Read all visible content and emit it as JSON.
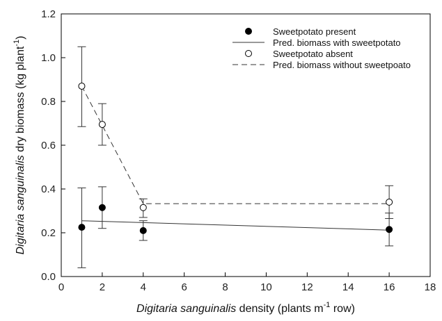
{
  "chart_data": {
    "type": "scatter",
    "xlabel": {
      "italic": "Digitaria sanguinalis",
      "rest": " density (plants m",
      "sup": "-1",
      "end": " row)"
    },
    "ylabel": {
      "italic": "Digitaria sanguinalis",
      "rest": " dry biomass (kg plant",
      "sup": "-1",
      "end": ")"
    },
    "xlim": [
      0,
      18
    ],
    "ylim": [
      0,
      1.2
    ],
    "xticks": [
      0,
      2,
      4,
      6,
      8,
      10,
      12,
      14,
      16,
      18
    ],
    "yticks": [
      0.0,
      0.2,
      0.4,
      0.6,
      0.8,
      1.0,
      1.2
    ],
    "grid": false,
    "legend_position": "top-right",
    "legend": [
      {
        "label": "Sweetpotato present",
        "kind": "marker",
        "fill": "#000000"
      },
      {
        "label": "Pred. biomass with sweetpotato",
        "kind": "line",
        "dash": false
      },
      {
        "label": "Sweetpotato absent",
        "kind": "marker",
        "fill": "#ffffff"
      },
      {
        "label": "Pred. biomass without sweetpoato",
        "kind": "line",
        "dash": true
      }
    ],
    "series": [
      {
        "name": "Sweetpotato present",
        "marker": "filled-circle",
        "x": [
          1,
          2,
          4,
          16
        ],
        "y": [
          0.225,
          0.315,
          0.21,
          0.215
        ],
        "err_low": [
          0.04,
          0.22,
          0.165,
          0.14
        ],
        "err_high": [
          0.405,
          0.41,
          0.255,
          0.29
        ]
      },
      {
        "name": "Sweetpotato absent",
        "marker": "open-circle",
        "x": [
          1,
          2,
          4,
          16
        ],
        "y": [
          0.87,
          0.695,
          0.315,
          0.34
        ],
        "err_low": [
          0.685,
          0.6,
          0.27,
          0.265
        ],
        "err_high": [
          1.05,
          0.79,
          0.355,
          0.415
        ]
      },
      {
        "name": "Pred. biomass with sweetpotato",
        "line": "solid",
        "x": [
          1,
          16
        ],
        "y": [
          0.255,
          0.212
        ]
      },
      {
        "name": "Pred. biomass without sweetpoato",
        "line": "dashed",
        "x": [
          1,
          4,
          16
        ],
        "y": [
          0.87,
          0.333,
          0.333
        ]
      }
    ]
  }
}
